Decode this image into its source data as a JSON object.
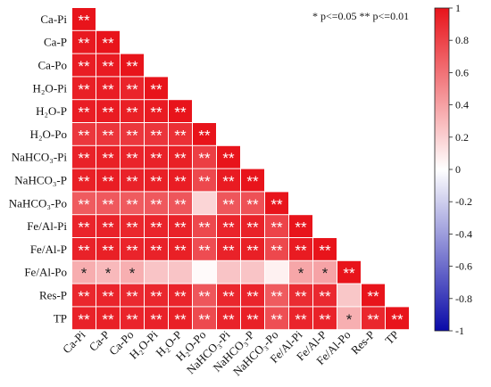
{
  "chart_data": {
    "type": "heatmap",
    "variables": [
      "Ca-Pi",
      "Ca-P",
      "Ca-Po",
      "H₂O-Pi",
      "H₂O-P",
      "H₂O-Po",
      "NaHCO₃-Pi",
      "NaHCO₃-P",
      "NaHCO₃-Po",
      "Fe/Al-Pi",
      "Fe/Al-P",
      "Fe/Al-Po",
      "Res-P",
      "TP"
    ],
    "values": [
      [
        1
      ],
      [
        0.98,
        1
      ],
      [
        0.96,
        0.97,
        1
      ],
      [
        0.95,
        0.96,
        0.93,
        1
      ],
      [
        0.96,
        0.97,
        0.95,
        0.97,
        1
      ],
      [
        0.85,
        0.86,
        0.85,
        0.86,
        0.88,
        1
      ],
      [
        0.94,
        0.95,
        0.93,
        0.94,
        0.95,
        0.82,
        1
      ],
      [
        0.95,
        0.96,
        0.94,
        0.95,
        0.96,
        0.78,
        0.97,
        1
      ],
      [
        0.7,
        0.71,
        0.7,
        0.71,
        0.72,
        0.18,
        0.72,
        0.74,
        1
      ],
      [
        0.93,
        0.94,
        0.92,
        0.93,
        0.94,
        0.78,
        0.93,
        0.94,
        0.8,
        1
      ],
      [
        0.94,
        0.95,
        0.93,
        0.94,
        0.95,
        0.76,
        0.94,
        0.95,
        0.78,
        0.97,
        1
      ],
      [
        0.35,
        0.3,
        0.34,
        0.25,
        0.25,
        0.02,
        0.25,
        0.25,
        0.06,
        0.38,
        0.39,
        1
      ],
      [
        0.92,
        0.93,
        0.91,
        0.92,
        0.93,
        0.72,
        0.92,
        0.93,
        0.7,
        0.9,
        0.91,
        0.24,
        1
      ],
      [
        0.94,
        0.95,
        0.93,
        0.94,
        0.95,
        0.77,
        0.94,
        0.95,
        0.75,
        0.93,
        0.94,
        0.34,
        0.92,
        1
      ]
    ],
    "significance": [
      [
        "**"
      ],
      [
        "**",
        "**"
      ],
      [
        "**",
        "**",
        "**"
      ],
      [
        "**",
        "**",
        "**",
        "**"
      ],
      [
        "**",
        "**",
        "**",
        "**",
        "**"
      ],
      [
        "**",
        "**",
        "**",
        "**",
        "**",
        "**"
      ],
      [
        "**",
        "**",
        "**",
        "**",
        "**",
        "**",
        "**"
      ],
      [
        "**",
        "**",
        "**",
        "**",
        "**",
        "**",
        "**",
        "**"
      ],
      [
        "**",
        "**",
        "**",
        "**",
        "**",
        "",
        "**",
        "**",
        "**"
      ],
      [
        "**",
        "**",
        "**",
        "**",
        "**",
        "**",
        "**",
        "**",
        "**",
        "**"
      ],
      [
        "**",
        "**",
        "**",
        "**",
        "**",
        "**",
        "**",
        "**",
        "**",
        "**",
        "**"
      ],
      [
        "*",
        "*",
        "*",
        "",
        "",
        "",
        "",
        "",
        "",
        "*",
        "*",
        "**"
      ],
      [
        "**",
        "**",
        "**",
        "**",
        "**",
        "**",
        "**",
        "**",
        "**",
        "**",
        "**",
        "",
        "**"
      ],
      [
        "**",
        "**",
        "**",
        "**",
        "**",
        "**",
        "**",
        "**",
        "**",
        "**",
        "**",
        "*",
        "**",
        "**"
      ]
    ],
    "legend_note": "* p<=0.05  ** p<=0.01",
    "colorbar": {
      "min": -1,
      "max": 1,
      "ticks": [
        "1",
        "0.8",
        "0.6",
        "0.4",
        "0.2",
        "0",
        "-0.2",
        "-0.4",
        "-0.6",
        "-0.8",
        "-1"
      ],
      "colors": {
        "negative": "#0a0aa8",
        "zero": "#ffffff",
        "positive": "#e8141b"
      },
      "placement": "right"
    },
    "grid": false
  }
}
